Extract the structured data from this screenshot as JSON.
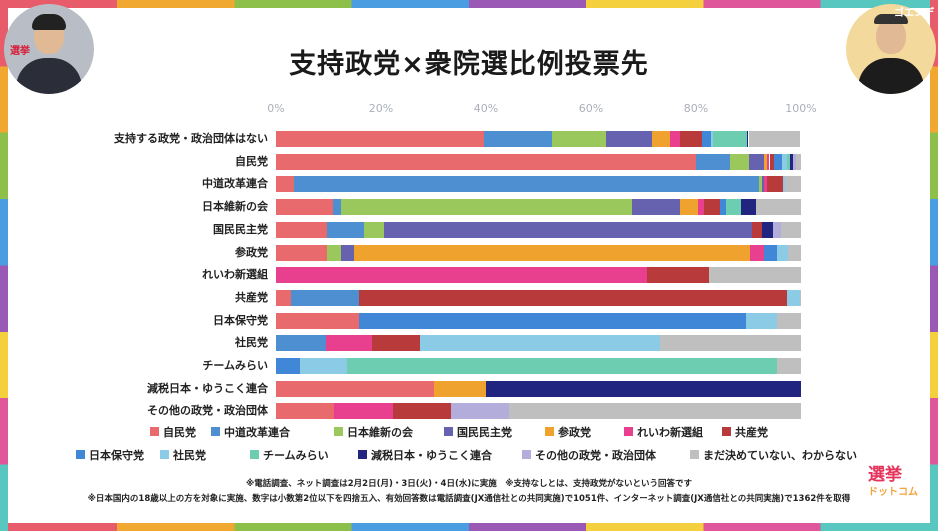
{
  "header": {
    "title": "支持政党×衆院選比例投票先"
  },
  "branding": {
    "top_left_mark": "選挙",
    "bottom_right_main": "選挙",
    "bottom_right_sub": "ドットコム",
    "top_right_mark": "ゴエンデ"
  },
  "frame_colors": [
    "#e85b6a",
    "#f0a830",
    "#8cc04a",
    "#4a9de0",
    "#9b59b6",
    "#f4d03f",
    "#e0569a",
    "#57c7c0"
  ],
  "chart_data": {
    "type": "bar",
    "orientation": "horizontal",
    "stacked": true,
    "x_ticks": [
      "0%",
      "20%",
      "40%",
      "60%",
      "80%",
      "100%"
    ],
    "xlim": [
      0,
      100
    ],
    "legend_position": "bottom",
    "categories": [
      "支持する政党・政治団体はない",
      "自民党",
      "中道改革連合",
      "日本維新の会",
      "国民民主党",
      "参政党",
      "れいわ新選組",
      "共産党",
      "日本保守党",
      "社民党",
      "チームみらい",
      "減税日本・ゆうこく連合",
      "その他の政党・政治団体"
    ],
    "series": [
      {
        "name": "自民党",
        "color": "#e96a6d",
        "values": [
          39.6,
          80.0,
          3.5,
          10.8,
          9.8,
          9.8,
          0,
          2.9,
          15.9,
          0,
          0,
          30.0,
          11.1
        ]
      },
      {
        "name": "中道改革連合",
        "color": "#4d8fd0",
        "values": [
          13.0,
          6.5,
          88.5,
          1.5,
          7.0,
          0,
          0,
          12.9,
          0,
          9.5,
          0,
          0,
          0
        ]
      },
      {
        "name": "日本維新の会",
        "color": "#9bc85c",
        "values": [
          10.2,
          3.5,
          0.5,
          55.5,
          3.8,
          2.5,
          0,
          0,
          0,
          0,
          0,
          0,
          0
        ]
      },
      {
        "name": "国民民主党",
        "color": "#6662b0",
        "values": [
          8.8,
          3.0,
          0.5,
          9.1,
          70.0,
          2.5,
          0,
          0,
          0,
          0,
          0,
          0,
          0
        ]
      },
      {
        "name": "参政党",
        "color": "#f0a22e",
        "values": [
          3.5,
          0.6,
          0,
          3.5,
          0,
          75.5,
          0,
          0,
          0,
          0,
          0,
          10.0,
          0
        ]
      },
      {
        "name": "れいわ新選組",
        "color": "#e8408f",
        "values": [
          1.9,
          0.4,
          0.5,
          1.2,
          0,
          2.6,
          70.6,
          0,
          0,
          8.8,
          0,
          0,
          11.1
        ]
      },
      {
        "name": "共産党",
        "color": "#b93a3a",
        "values": [
          4.2,
          0.9,
          3.0,
          3.0,
          2.0,
          0,
          11.8,
          81.5,
          0,
          9.2,
          0,
          0,
          11.1
        ]
      },
      {
        "name": "日本保守党",
        "color": "#4087d8",
        "values": [
          1.6,
          1.5,
          0,
          1.2,
          0,
          2.5,
          0,
          0,
          73.7,
          0,
          4.5,
          0,
          0
        ]
      },
      {
        "name": "社民党",
        "color": "#8ccbe6",
        "values": [
          0.5,
          1.0,
          0.5,
          0,
          0,
          2.1,
          0,
          2.6,
          5.8,
          45.7,
          9.0,
          0,
          0
        ]
      },
      {
        "name": "チームみらい",
        "color": "#6dcdb0",
        "values": [
          6.4,
          0.5,
          0,
          2.7,
          0,
          0,
          0,
          0,
          0,
          0,
          82.0,
          0,
          0
        ]
      },
      {
        "name": "減税日本・ゆうこく連合",
        "color": "#212580",
        "values": [
          0.3,
          0.6,
          0,
          3.0,
          2.0,
          0,
          0,
          0,
          0,
          0,
          0,
          60.0,
          0
        ]
      },
      {
        "name": "その他の政党・政治団体",
        "color": "#b3addc",
        "values": [
          0,
          0.5,
          0,
          0,
          1.5,
          0,
          0,
          0,
          0,
          0,
          0,
          0,
          11.1
        ]
      },
      {
        "name": "まだ決めていない、わからない",
        "color": "#bfbfbf",
        "values": [
          9.9,
          1.0,
          3.0,
          8.5,
          3.9,
          2.5,
          17.6,
          0.1,
          4.6,
          26.8,
          4.5,
          0,
          55.6
        ]
      }
    ]
  },
  "notes": [
    "※電話調査、ネット調査は2月2日(月)・3日(火)・4日(水)に実施　※支持なしとは、支持政党がないという回答です",
    "※日本国内の18歳以上の方を対象に実施、数字は小数第2位以下を四捨五入、有効回答数は電話調査(JX通信社との共同実施)で1051件、インターネット調査(JX通信社との共同実施)で1362件を取得"
  ]
}
